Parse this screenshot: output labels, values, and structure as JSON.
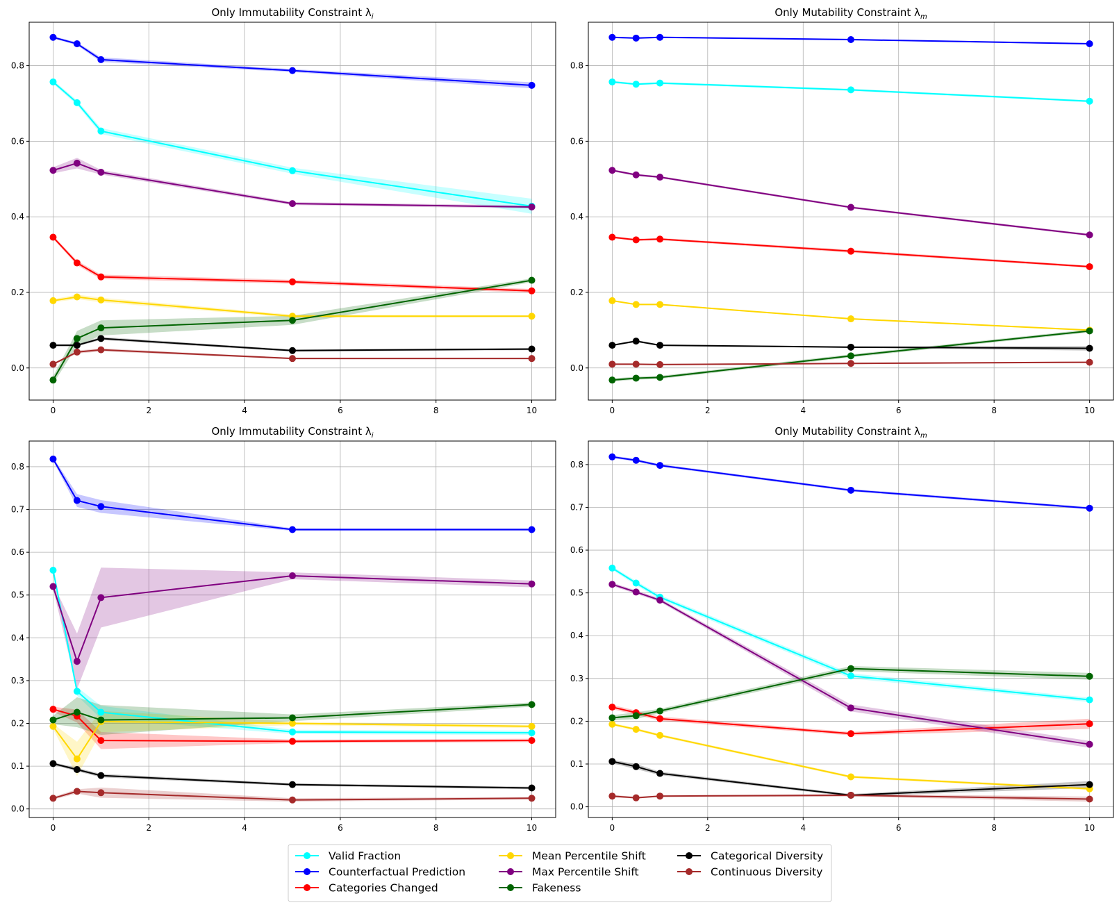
{
  "legend": {
    "location": "lower-center",
    "columns": 3,
    "entries": [
      {
        "name": "Valid Fraction",
        "color": "#00ffff"
      },
      {
        "name": "Counterfactual Prediction",
        "color": "#0000ff"
      },
      {
        "name": "Categories Changed",
        "color": "#ff0000"
      },
      {
        "name": "Mean Percentile Shift",
        "color": "#ffd700"
      },
      {
        "name": "Max Percentile Shift",
        "color": "#800080"
      },
      {
        "name": "Fakeness",
        "color": "#006400"
      },
      {
        "name": "Categorical Diversity",
        "color": "#000000"
      },
      {
        "name": "Continuous Diversity",
        "color": "#a52a2a"
      }
    ]
  },
  "chart_data": [
    {
      "type": "line",
      "title": "Only Immutability Constraint λ",
      "title_sub": "i",
      "grid": true,
      "x": [
        0,
        0.5,
        1,
        5,
        10
      ],
      "xlim": [
        -0.5,
        10.5
      ],
      "ylim": [
        -0.085,
        0.915
      ],
      "xticks": [
        0,
        2,
        4,
        6,
        8,
        10
      ],
      "yticks": [
        0.0,
        0.2,
        0.4,
        0.6,
        0.8
      ],
      "ytick_labels": [
        "0.0",
        "0.2",
        "0.4",
        "0.6",
        "0.8"
      ],
      "series": [
        {
          "name": "Valid Fraction",
          "color": "#00ffff",
          "values": [
            0.757,
            0.702,
            0.627,
            0.522,
            0.428
          ],
          "band": [
            0.005,
            0.006,
            0.008,
            0.008,
            0.02
          ]
        },
        {
          "name": "Counterfactual Prediction",
          "color": "#0000ff",
          "values": [
            0.875,
            0.858,
            0.816,
            0.787,
            0.748
          ],
          "band": [
            0.003,
            0.004,
            0.006,
            0.004,
            0.008
          ]
        },
        {
          "name": "Categories Changed",
          "color": "#ff0000",
          "values": [
            0.346,
            0.278,
            0.241,
            0.228,
            0.204
          ],
          "band": [
            0.004,
            0.006,
            0.006,
            0.005,
            0.005
          ]
        },
        {
          "name": "Mean Percentile Shift",
          "color": "#ffd700",
          "values": [
            0.178,
            0.188,
            0.18,
            0.137,
            0.137
          ],
          "band": [
            0.004,
            0.006,
            0.006,
            0.004,
            0.003
          ]
        },
        {
          "name": "Max Percentile Shift",
          "color": "#800080",
          "values": [
            0.523,
            0.542,
            0.518,
            0.435,
            0.426
          ],
          "band": [
            0.008,
            0.014,
            0.006,
            0.004,
            0.004
          ]
        },
        {
          "name": "Fakeness",
          "color": "#006400",
          "values": [
            -0.032,
            0.078,
            0.106,
            0.126,
            0.232
          ],
          "band": [
            0.01,
            0.02,
            0.02,
            0.012,
            0.005
          ]
        },
        {
          "name": "Categorical Diversity",
          "color": "#000000",
          "values": [
            0.06,
            0.06,
            0.078,
            0.046,
            0.05
          ],
          "band": [
            0.003,
            0.003,
            0.004,
            0.003,
            0.003
          ]
        },
        {
          "name": "Continuous Diversity",
          "color": "#a52a2a",
          "values": [
            0.01,
            0.042,
            0.048,
            0.025,
            0.025
          ],
          "band": [
            0.002,
            0.004,
            0.004,
            0.002,
            0.002
          ]
        }
      ]
    },
    {
      "type": "line",
      "title": "Only Mutability Constraint λ",
      "title_sub": "m",
      "grid": true,
      "x": [
        0,
        0.5,
        1,
        5,
        10
      ],
      "xlim": [
        -0.5,
        10.5
      ],
      "ylim": [
        -0.085,
        0.915
      ],
      "xticks": [
        0,
        2,
        4,
        6,
        8,
        10
      ],
      "yticks": [
        0.0,
        0.2,
        0.4,
        0.6,
        0.8
      ],
      "ytick_labels": [
        "0.0",
        "0.2",
        "0.4",
        "0.6",
        "0.8"
      ],
      "series": [
        {
          "name": "Valid Fraction",
          "color": "#00ffff",
          "values": [
            0.757,
            0.751,
            0.754,
            0.736,
            0.706
          ],
          "band": [
            0.003,
            0.003,
            0.003,
            0.003,
            0.003
          ]
        },
        {
          "name": "Counterfactual Prediction",
          "color": "#0000ff",
          "values": [
            0.875,
            0.873,
            0.875,
            0.869,
            0.858
          ],
          "band": [
            0.002,
            0.002,
            0.002,
            0.002,
            0.002
          ]
        },
        {
          "name": "Categories Changed",
          "color": "#ff0000",
          "values": [
            0.346,
            0.339,
            0.341,
            0.309,
            0.268
          ],
          "band": [
            0.003,
            0.003,
            0.003,
            0.004,
            0.003
          ]
        },
        {
          "name": "Mean Percentile Shift",
          "color": "#ffd700",
          "values": [
            0.178,
            0.168,
            0.168,
            0.13,
            0.1
          ],
          "band": [
            0.002,
            0.002,
            0.002,
            0.002,
            0.002
          ]
        },
        {
          "name": "Max Percentile Shift",
          "color": "#800080",
          "values": [
            0.523,
            0.511,
            0.505,
            0.425,
            0.352
          ],
          "band": [
            0.003,
            0.003,
            0.003,
            0.003,
            0.003
          ]
        },
        {
          "name": "Fakeness",
          "color": "#006400",
          "values": [
            -0.032,
            -0.027,
            -0.025,
            0.032,
            0.098
          ],
          "band": [
            0.004,
            0.004,
            0.004,
            0.004,
            0.004
          ]
        },
        {
          "name": "Categorical Diversity",
          "color": "#000000",
          "values": [
            0.06,
            0.071,
            0.06,
            0.055,
            0.052
          ],
          "band": [
            0.002,
            0.003,
            0.002,
            0.002,
            0.006
          ]
        },
        {
          "name": "Continuous Diversity",
          "color": "#a52a2a",
          "values": [
            0.01,
            0.01,
            0.009,
            0.012,
            0.015
          ],
          "band": [
            0.002,
            0.002,
            0.002,
            0.002,
            0.002
          ]
        }
      ]
    },
    {
      "type": "line",
      "title": "Only Immutability Constraint λ",
      "title_sub": "i",
      "grid": true,
      "x": [
        0,
        0.5,
        1,
        5,
        10
      ],
      "xlim": [
        -0.5,
        10.5
      ],
      "ylim": [
        -0.02,
        0.86
      ],
      "xticks": [
        0,
        2,
        4,
        6,
        8,
        10
      ],
      "yticks": [
        0.0,
        0.1,
        0.2,
        0.3,
        0.4,
        0.5,
        0.6,
        0.7,
        0.8
      ],
      "ytick_labels": [
        "0.0",
        "0.1",
        "0.2",
        "0.3",
        "0.4",
        "0.5",
        "0.6",
        "0.7",
        "0.8"
      ],
      "series": [
        {
          "name": "Valid Fraction",
          "color": "#00ffff",
          "values": [
            0.558,
            0.275,
            0.226,
            0.18,
            0.178
          ],
          "band": [
            0.005,
            0.01,
            0.015,
            0.005,
            0.005
          ]
        },
        {
          "name": "Counterfactual Prediction",
          "color": "#0000ff",
          "values": [
            0.818,
            0.721,
            0.707,
            0.653,
            0.653
          ],
          "band": [
            0.004,
            0.015,
            0.015,
            0.003,
            0.003
          ]
        },
        {
          "name": "Categories Changed",
          "color": "#ff0000",
          "values": [
            0.233,
            0.217,
            0.16,
            0.158,
            0.16
          ],
          "band": [
            0.006,
            0.015,
            0.02,
            0.004,
            0.004
          ]
        },
        {
          "name": "Mean Percentile Shift",
          "color": "#ffd700",
          "values": [
            0.193,
            0.117,
            0.204,
            0.2,
            0.193
          ],
          "band": [
            0.006,
            0.04,
            0.025,
            0.004,
            0.004
          ]
        },
        {
          "name": "Max Percentile Shift",
          "color": "#800080",
          "values": [
            0.52,
            0.345,
            0.494,
            0.545,
            0.526
          ],
          "band": [
            0.006,
            0.065,
            0.07,
            0.008,
            0.008
          ]
        },
        {
          "name": "Fakeness",
          "color": "#006400",
          "values": [
            0.208,
            0.226,
            0.208,
            0.213,
            0.244
          ],
          "band": [
            0.01,
            0.035,
            0.035,
            0.008,
            0.005
          ]
        },
        {
          "name": "Categorical Diversity",
          "color": "#000000",
          "values": [
            0.106,
            0.092,
            0.078,
            0.057,
            0.049
          ],
          "band": [
            0.003,
            0.004,
            0.004,
            0.003,
            0.003
          ]
        },
        {
          "name": "Continuous Diversity",
          "color": "#a52a2a",
          "values": [
            0.025,
            0.041,
            0.038,
            0.021,
            0.025
          ],
          "band": [
            0.003,
            0.005,
            0.012,
            0.004,
            0.003
          ]
        }
      ]
    },
    {
      "type": "line",
      "title": "Only Mutability Constraint λ",
      "title_sub": "m",
      "grid": true,
      "x": [
        0,
        0.5,
        1,
        5,
        10
      ],
      "xlim": [
        -0.5,
        10.5
      ],
      "ylim": [
        -0.025,
        0.855
      ],
      "xticks": [
        0,
        2,
        4,
        6,
        8,
        10
      ],
      "yticks": [
        0.0,
        0.1,
        0.2,
        0.3,
        0.4,
        0.5,
        0.6,
        0.7,
        0.8
      ],
      "ytick_labels": [
        "0.0",
        "0.1",
        "0.2",
        "0.3",
        "0.4",
        "0.5",
        "0.6",
        "0.7",
        "0.8"
      ],
      "series": [
        {
          "name": "Valid Fraction",
          "color": "#00ffff",
          "values": [
            0.558,
            0.523,
            0.49,
            0.306,
            0.25
          ],
          "band": [
            0.004,
            0.005,
            0.005,
            0.006,
            0.005
          ]
        },
        {
          "name": "Counterfactual Prediction",
          "color": "#0000ff",
          "values": [
            0.818,
            0.81,
            0.798,
            0.74,
            0.698
          ],
          "band": [
            0.003,
            0.003,
            0.003,
            0.003,
            0.003
          ]
        },
        {
          "name": "Categories Changed",
          "color": "#ff0000",
          "values": [
            0.233,
            0.22,
            0.206,
            0.171,
            0.194
          ],
          "band": [
            0.005,
            0.005,
            0.005,
            0.004,
            0.012
          ]
        },
        {
          "name": "Mean Percentile Shift",
          "color": "#ffd700",
          "values": [
            0.193,
            0.181,
            0.167,
            0.07,
            0.042
          ],
          "band": [
            0.003,
            0.003,
            0.003,
            0.003,
            0.003
          ]
        },
        {
          "name": "Max Percentile Shift",
          "color": "#800080",
          "values": [
            0.52,
            0.502,
            0.483,
            0.231,
            0.146
          ],
          "band": [
            0.004,
            0.004,
            0.004,
            0.008,
            0.008
          ]
        },
        {
          "name": "Fakeness",
          "color": "#006400",
          "values": [
            0.208,
            0.213,
            0.224,
            0.323,
            0.305
          ],
          "band": [
            0.006,
            0.008,
            0.005,
            0.006,
            0.008
          ]
        },
        {
          "name": "Categorical Diversity",
          "color": "#000000",
          "values": [
            0.106,
            0.094,
            0.078,
            0.027,
            0.052
          ],
          "band": [
            0.004,
            0.006,
            0.004,
            0.003,
            0.008
          ]
        },
        {
          "name": "Continuous Diversity",
          "color": "#a52a2a",
          "values": [
            0.025,
            0.021,
            0.025,
            0.027,
            0.018
          ],
          "band": [
            0.003,
            0.002,
            0.002,
            0.003,
            0.006
          ]
        }
      ]
    }
  ]
}
